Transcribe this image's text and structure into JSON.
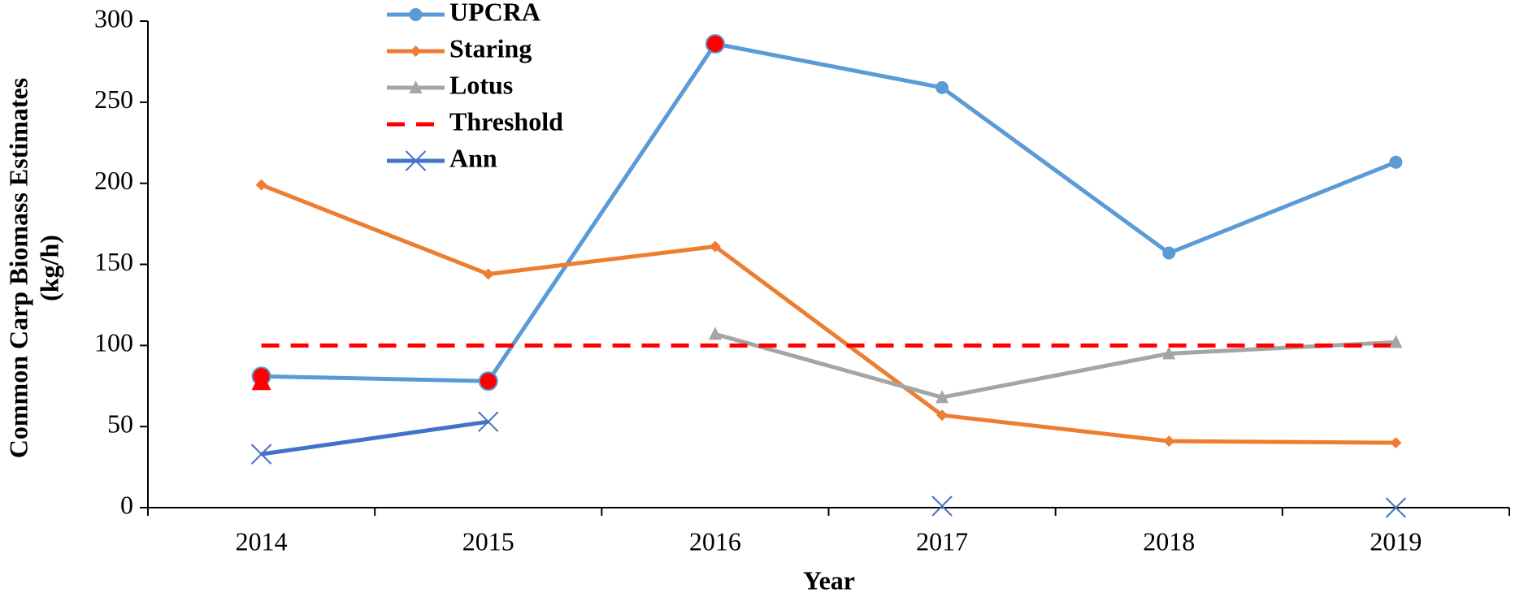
{
  "chart_data": {
    "type": "line",
    "xlabel": "Year",
    "ylabel": [
      "Common Carp Biomass Estimates",
      "(kg/h)"
    ],
    "categories": [
      "2014",
      "2015",
      "2016",
      "2017",
      "2018",
      "2019"
    ],
    "ylim": [
      0,
      300
    ],
    "yticks": [
      0,
      50,
      100,
      150,
      200,
      250,
      300
    ],
    "grid": false,
    "legend": "top-left",
    "highlight": {
      "color": "#ff0000",
      "points": [
        [
          0,
          0
        ],
        [
          0,
          1
        ],
        [
          0,
          2
        ],
        [
          2,
          0
        ]
      ]
    },
    "series": [
      {
        "name": "UPCRA",
        "color": "#5b9bd5",
        "marker": "circle",
        "values": [
          81,
          78,
          286,
          259,
          157,
          213
        ]
      },
      {
        "name": "Staring",
        "color": "#ed7d31",
        "marker": "diamond",
        "values": [
          199,
          144,
          161,
          57,
          41,
          40
        ]
      },
      {
        "name": "Lotus",
        "color": "#a5a5a5",
        "marker": "triangle",
        "values": [
          78,
          null,
          107,
          68,
          95,
          102
        ]
      },
      {
        "name": "Threshold",
        "color": "#ff0000",
        "marker": "none",
        "dashed": true,
        "values": [
          100,
          100,
          100,
          100,
          100,
          100
        ]
      },
      {
        "name": "Ann",
        "color": "#4472c4",
        "marker": "x",
        "values": [
          33,
          53,
          null,
          1,
          null,
          0
        ]
      }
    ]
  }
}
